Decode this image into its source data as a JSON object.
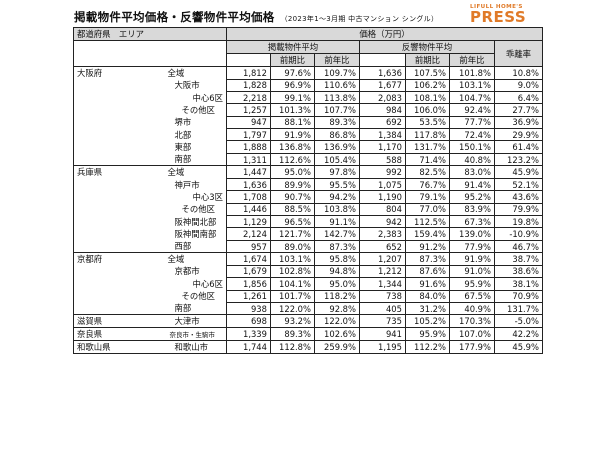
{
  "title": "掲載物件平均価格・反響物件平均価格",
  "subtitle": "（2023年1～3月期 中古マンション シングル）",
  "logo": {
    "top": "LIFULL HOME'S",
    "main": "PRESS"
  },
  "header": {
    "pref_area": "都道府県　エリア",
    "price": "価格（万円）",
    "listing_avg": "掲載物件平均",
    "response_avg": "反響物件平均",
    "divergence": "乖離率",
    "qoq": "前期比",
    "yoy": "前年比"
  },
  "rows": [
    {
      "pref": "大阪府",
      "area": "全域",
      "indent": "zen",
      "l": "1,812",
      "lq": "97.6%",
      "ly": "109.7%",
      "r": "1,636",
      "rq": "107.5%",
      "ry": "101.8%",
      "d": "10.8%"
    },
    {
      "pref": "",
      "area": "大阪市",
      "indent": "l1",
      "l": "1,828",
      "lq": "96.9%",
      "ly": "110.6%",
      "r": "1,677",
      "rq": "106.2%",
      "ry": "103.1%",
      "d": "9.0%"
    },
    {
      "pref": "",
      "area": "中心6区",
      "indent": "l3",
      "l": "2,218",
      "lq": "99.1%",
      "ly": "113.8%",
      "r": "2,083",
      "rq": "108.1%",
      "ry": "104.7%",
      "d": "6.4%"
    },
    {
      "pref": "",
      "area": "その他区",
      "indent": "l2",
      "l": "1,257",
      "lq": "101.3%",
      "ly": "107.7%",
      "r": "984",
      "rq": "106.0%",
      "ry": "92.4%",
      "d": "27.7%"
    },
    {
      "pref": "",
      "area": "堺市",
      "indent": "l1",
      "l": "947",
      "lq": "88.1%",
      "ly": "89.3%",
      "r": "692",
      "rq": "53.5%",
      "ry": "77.7%",
      "d": "36.9%"
    },
    {
      "pref": "",
      "area": "北部",
      "indent": "l1",
      "l": "1,797",
      "lq": "91.9%",
      "ly": "86.8%",
      "r": "1,384",
      "rq": "117.8%",
      "ry": "72.4%",
      "d": "29.9%"
    },
    {
      "pref": "",
      "area": "東部",
      "indent": "l1",
      "l": "1,888",
      "lq": "136.8%",
      "ly": "136.9%",
      "r": "1,170",
      "rq": "131.7%",
      "ry": "150.1%",
      "d": "61.4%"
    },
    {
      "pref": "",
      "area": "南部",
      "indent": "l1",
      "l": "1,311",
      "lq": "112.6%",
      "ly": "105.4%",
      "r": "588",
      "rq": "71.4%",
      "ry": "40.8%",
      "d": "123.2%"
    },
    {
      "pref": "兵庫県",
      "area": "全域",
      "indent": "zen",
      "l": "1,447",
      "lq": "95.0%",
      "ly": "97.8%",
      "r": "992",
      "rq": "82.5%",
      "ry": "83.0%",
      "d": "45.9%"
    },
    {
      "pref": "",
      "area": "神戸市",
      "indent": "l1",
      "l": "1,636",
      "lq": "89.9%",
      "ly": "95.5%",
      "r": "1,075",
      "rq": "76.7%",
      "ry": "91.4%",
      "d": "52.1%"
    },
    {
      "pref": "",
      "area": "中心3区",
      "indent": "l3",
      "l": "1,708",
      "lq": "90.7%",
      "ly": "94.2%",
      "r": "1,190",
      "rq": "79.1%",
      "ry": "95.2%",
      "d": "43.6%"
    },
    {
      "pref": "",
      "area": "その他区",
      "indent": "l2",
      "l": "1,446",
      "lq": "88.5%",
      "ly": "103.8%",
      "r": "804",
      "rq": "77.0%",
      "ry": "83.9%",
      "d": "79.9%"
    },
    {
      "pref": "",
      "area": "阪神間北部",
      "indent": "l1",
      "l": "1,129",
      "lq": "96.5%",
      "ly": "91.1%",
      "r": "942",
      "rq": "112.5%",
      "ry": "67.3%",
      "d": "19.8%"
    },
    {
      "pref": "",
      "area": "阪神間南部",
      "indent": "l1",
      "l": "2,124",
      "lq": "121.7%",
      "ly": "142.7%",
      "r": "2,383",
      "rq": "159.4%",
      "ry": "139.0%",
      "d": "-10.9%"
    },
    {
      "pref": "",
      "area": "西部",
      "indent": "l1",
      "l": "957",
      "lq": "89.0%",
      "ly": "87.3%",
      "r": "652",
      "rq": "91.2%",
      "ry": "77.9%",
      "d": "46.7%"
    },
    {
      "pref": "京都府",
      "area": "全域",
      "indent": "zen",
      "l": "1,674",
      "lq": "103.1%",
      "ly": "95.8%",
      "r": "1,207",
      "rq": "87.3%",
      "ry": "91.9%",
      "d": "38.7%"
    },
    {
      "pref": "",
      "area": "京都市",
      "indent": "l1",
      "l": "1,679",
      "lq": "102.8%",
      "ly": "94.8%",
      "r": "1,212",
      "rq": "87.6%",
      "ry": "91.0%",
      "d": "38.6%"
    },
    {
      "pref": "",
      "area": "中心6区",
      "indent": "l3",
      "l": "1,856",
      "lq": "104.1%",
      "ly": "95.0%",
      "r": "1,344",
      "rq": "91.6%",
      "ry": "95.9%",
      "d": "38.1%"
    },
    {
      "pref": "",
      "area": "その他区",
      "indent": "l2",
      "l": "1,261",
      "lq": "101.7%",
      "ly": "118.2%",
      "r": "738",
      "rq": "84.0%",
      "ry": "67.5%",
      "d": "70.9%"
    },
    {
      "pref": "",
      "area": "南部",
      "indent": "l1",
      "l": "938",
      "lq": "122.0%",
      "ly": "92.8%",
      "r": "405",
      "rq": "31.2%",
      "ry": "40.9%",
      "d": "131.7%"
    },
    {
      "pref": "滋賀県",
      "area": "大津市",
      "indent": "l1",
      "l": "698",
      "lq": "93.2%",
      "ly": "122.0%",
      "r": "735",
      "rq": "105.2%",
      "ry": "170.3%",
      "d": "-5.0%"
    },
    {
      "pref": "奈良県",
      "area": "奈良市・生駒市",
      "indent": "small",
      "l": "1,339",
      "lq": "89.3%",
      "ly": "102.6%",
      "r": "941",
      "rq": "95.9%",
      "ry": "107.0%",
      "d": "42.2%"
    },
    {
      "pref": "和歌山県",
      "area": "和歌山市",
      "indent": "l1",
      "l": "1,744",
      "lq": "112.8%",
      "ly": "259.9%",
      "r": "1,195",
      "rq": "112.2%",
      "ry": "177.9%",
      "d": "45.9%"
    }
  ]
}
